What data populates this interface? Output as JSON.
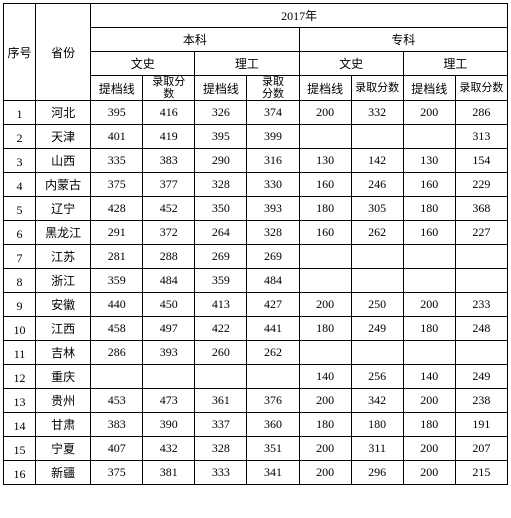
{
  "header": {
    "seq": "序号",
    "province": "省份",
    "year": "2017年",
    "benke": "本科",
    "zhuanke": "专科",
    "wenshi": "文史",
    "ligong": "理工",
    "tidang": "提档线",
    "luqu_multi": "录取分\n数",
    "luqu_short": "录取\n分数",
    "luqu": "录取分数"
  },
  "rows": [
    {
      "i": "1",
      "p": "河北",
      "c": [
        "395",
        "416",
        "326",
        "374",
        "200",
        "332",
        "200",
        "286"
      ]
    },
    {
      "i": "2",
      "p": "天津",
      "c": [
        "401",
        "419",
        "395",
        "399",
        "",
        "",
        "",
        "313"
      ]
    },
    {
      "i": "3",
      "p": "山西",
      "c": [
        "335",
        "383",
        "290",
        "316",
        "130",
        "142",
        "130",
        "154"
      ]
    },
    {
      "i": "4",
      "p": "内蒙古",
      "c": [
        "375",
        "377",
        "328",
        "330",
        "160",
        "246",
        "160",
        "229"
      ]
    },
    {
      "i": "5",
      "p": "辽宁",
      "c": [
        "428",
        "452",
        "350",
        "393",
        "180",
        "305",
        "180",
        "368"
      ]
    },
    {
      "i": "6",
      "p": "黑龙江",
      "c": [
        "291",
        "372",
        "264",
        "328",
        "160",
        "262",
        "160",
        "227"
      ]
    },
    {
      "i": "7",
      "p": "江苏",
      "c": [
        "281",
        "288",
        "269",
        "269",
        "",
        "",
        "",
        ""
      ]
    },
    {
      "i": "8",
      "p": "浙江",
      "c": [
        "359",
        "484",
        "359",
        "484",
        "",
        "",
        "",
        ""
      ]
    },
    {
      "i": "9",
      "p": "安徽",
      "c": [
        "440",
        "450",
        "413",
        "427",
        "200",
        "250",
        "200",
        "233"
      ]
    },
    {
      "i": "10",
      "p": "江西",
      "c": [
        "458",
        "497",
        "422",
        "441",
        "180",
        "249",
        "180",
        "248"
      ]
    },
    {
      "i": "11",
      "p": "吉林",
      "c": [
        "286",
        "393",
        "260",
        "262",
        "",
        "",
        "",
        ""
      ]
    },
    {
      "i": "12",
      "p": "重庆",
      "c": [
        "",
        "",
        "",
        "",
        "140",
        "256",
        "140",
        "249"
      ]
    },
    {
      "i": "13",
      "p": "贵州",
      "c": [
        "453",
        "473",
        "361",
        "376",
        "200",
        "342",
        "200",
        "238"
      ]
    },
    {
      "i": "14",
      "p": "甘肃",
      "c": [
        "383",
        "390",
        "337",
        "360",
        "180",
        "180",
        "180",
        "191"
      ]
    },
    {
      "i": "15",
      "p": "宁夏",
      "c": [
        "407",
        "432",
        "328",
        "351",
        "200",
        "311",
        "200",
        "207"
      ]
    },
    {
      "i": "16",
      "p": "新疆",
      "c": [
        "375",
        "381",
        "333",
        "341",
        "200",
        "296",
        "200",
        "215"
      ]
    }
  ]
}
